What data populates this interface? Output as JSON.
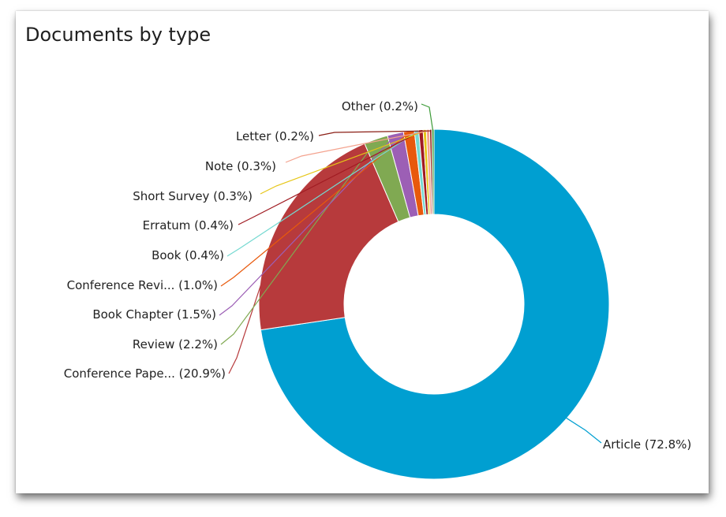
{
  "chart_data": {
    "type": "pie",
    "title": "Documents by type",
    "legend": "callout-labels",
    "slices": [
      {
        "label": "Article (72.8%)",
        "value": 72.8,
        "color": "#009fd1"
      },
      {
        "label": "Conference Pape... (20.9%)",
        "value": 20.9,
        "color": "#b73a3c"
      },
      {
        "label": "Review (2.2%)",
        "value": 2.2,
        "color": "#80a952"
      },
      {
        "label": "Book Chapter (1.5%)",
        "value": 1.5,
        "color": "#9c5fb5"
      },
      {
        "label": "Conference Revi... (1.0%)",
        "value": 1.0,
        "color": "#e8590c"
      },
      {
        "label": "Book (0.4%)",
        "value": 0.4,
        "color": "#75d9d1"
      },
      {
        "label": "Erratum (0.4%)",
        "value": 0.4,
        "color": "#a01b22"
      },
      {
        "label": "Short Survey (0.3%)",
        "value": 0.3,
        "color": "#e6c617"
      },
      {
        "label": "Note (0.3%)",
        "value": 0.3,
        "color": "#f4a38f"
      },
      {
        "label": "Letter (0.2%)",
        "value": 0.2,
        "color": "#8a1d14"
      },
      {
        "label": "Other (0.2%)",
        "value": 0.2,
        "color": "#3c9a37"
      }
    ]
  }
}
